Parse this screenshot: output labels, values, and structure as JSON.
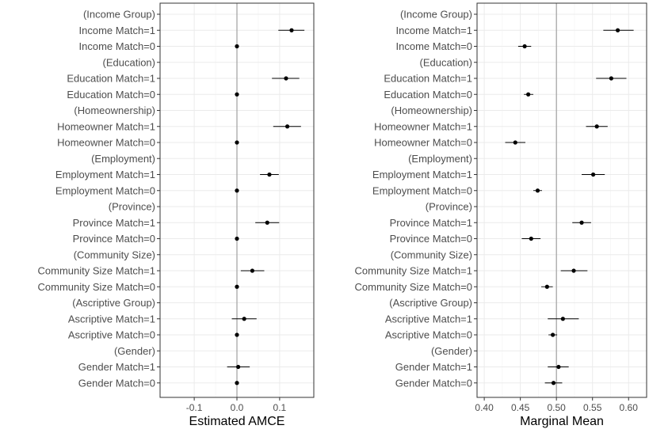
{
  "chart_data": [
    {
      "type": "scatter",
      "subtype": "coefficient-plot",
      "title": "",
      "xlabel": "Estimated AMCE",
      "ylabel": "",
      "xlim": [
        -0.18,
        0.18
      ],
      "xticks": [
        -0.1,
        0.0,
        0.1
      ],
      "xtick_labels": [
        "-0.1",
        "0.0",
        "0.1"
      ],
      "reference_line": 0.0,
      "grid": true,
      "categories": [
        "(Income Group)",
        "Income Match=1",
        "Income Match=0",
        "(Education)",
        "Education Match=1",
        "Education Match=0",
        "(Homeownership)",
        "Homeowner Match=1",
        "Homeowner Match=0",
        "(Employment)",
        "Employment Match=1",
        "Employment Match=0",
        "(Province)",
        "Province Match=1",
        "Province Match=0",
        "(Community Size)",
        "Community Size Match=1",
        "Community Size Match=0",
        "(Ascriptive Group)",
        "Ascriptive Match=1",
        "Ascriptive Match=0",
        "(Gender)",
        "Gender Match=1",
        "Gender Match=0"
      ],
      "estimates": [
        null,
        0.128,
        0.0,
        null,
        0.115,
        0.0,
        null,
        0.118,
        0.0,
        null,
        0.076,
        0.0,
        null,
        0.071,
        0.0,
        null,
        0.036,
        0.0,
        null,
        0.017,
        0.0,
        null,
        0.003,
        0.0
      ],
      "lower": [
        null,
        0.097,
        0.0,
        null,
        0.082,
        0.0,
        null,
        0.085,
        0.0,
        null,
        0.054,
        0.0,
        null,
        0.043,
        0.0,
        null,
        0.009,
        0.0,
        null,
        -0.012,
        0.0,
        null,
        -0.023,
        0.0
      ],
      "upper": [
        null,
        0.158,
        0.0,
        null,
        0.146,
        0.0,
        null,
        0.15,
        0.0,
        null,
        0.098,
        0.0,
        null,
        0.099,
        0.0,
        null,
        0.064,
        0.0,
        null,
        0.046,
        0.0,
        null,
        0.03,
        0.0
      ]
    },
    {
      "type": "scatter",
      "subtype": "coefficient-plot",
      "title": "",
      "xlabel": "Marginal Mean",
      "ylabel": "",
      "xlim": [
        0.39,
        0.625
      ],
      "xticks": [
        0.4,
        0.45,
        0.5,
        0.55,
        0.6
      ],
      "xtick_labels": [
        "0.40",
        "0.45",
        "0.50",
        "0.55",
        "0.60"
      ],
      "reference_line": 0.5,
      "grid": true,
      "categories": [
        "(Income Group)",
        "Income Match=1",
        "Income Match=0",
        "(Education)",
        "Education Match=1",
        "Education Match=0",
        "(Homeownership)",
        "Homeowner Match=1",
        "Homeowner Match=0",
        "(Employment)",
        "Employment Match=1",
        "Employment Match=0",
        "(Province)",
        "Province Match=1",
        "Province Match=0",
        "(Community Size)",
        "Community Size Match=1",
        "Community Size Match=0",
        "(Ascriptive Group)",
        "Ascriptive Match=1",
        "Ascriptive Match=0",
        "(Gender)",
        "Gender Match=1",
        "Gender Match=0"
      ],
      "estimates": [
        null,
        0.585,
        0.456,
        null,
        0.576,
        0.461,
        null,
        0.556,
        0.443,
        null,
        0.551,
        0.474,
        null,
        0.535,
        0.465,
        null,
        0.524,
        0.487,
        null,
        0.509,
        0.495,
        null,
        0.503,
        0.496
      ],
      "lower": [
        null,
        0.565,
        0.447,
        null,
        0.555,
        0.455,
        null,
        0.541,
        0.429,
        null,
        0.535,
        0.468,
        null,
        0.522,
        0.452,
        null,
        0.506,
        0.479,
        null,
        0.488,
        0.489,
        null,
        0.488,
        0.484
      ],
      "upper": [
        null,
        0.607,
        0.465,
        null,
        0.597,
        0.468,
        null,
        0.571,
        0.457,
        null,
        0.567,
        0.48,
        null,
        0.548,
        0.478,
        null,
        0.543,
        0.495,
        null,
        0.531,
        0.501,
        null,
        0.517,
        0.508
      ]
    }
  ]
}
